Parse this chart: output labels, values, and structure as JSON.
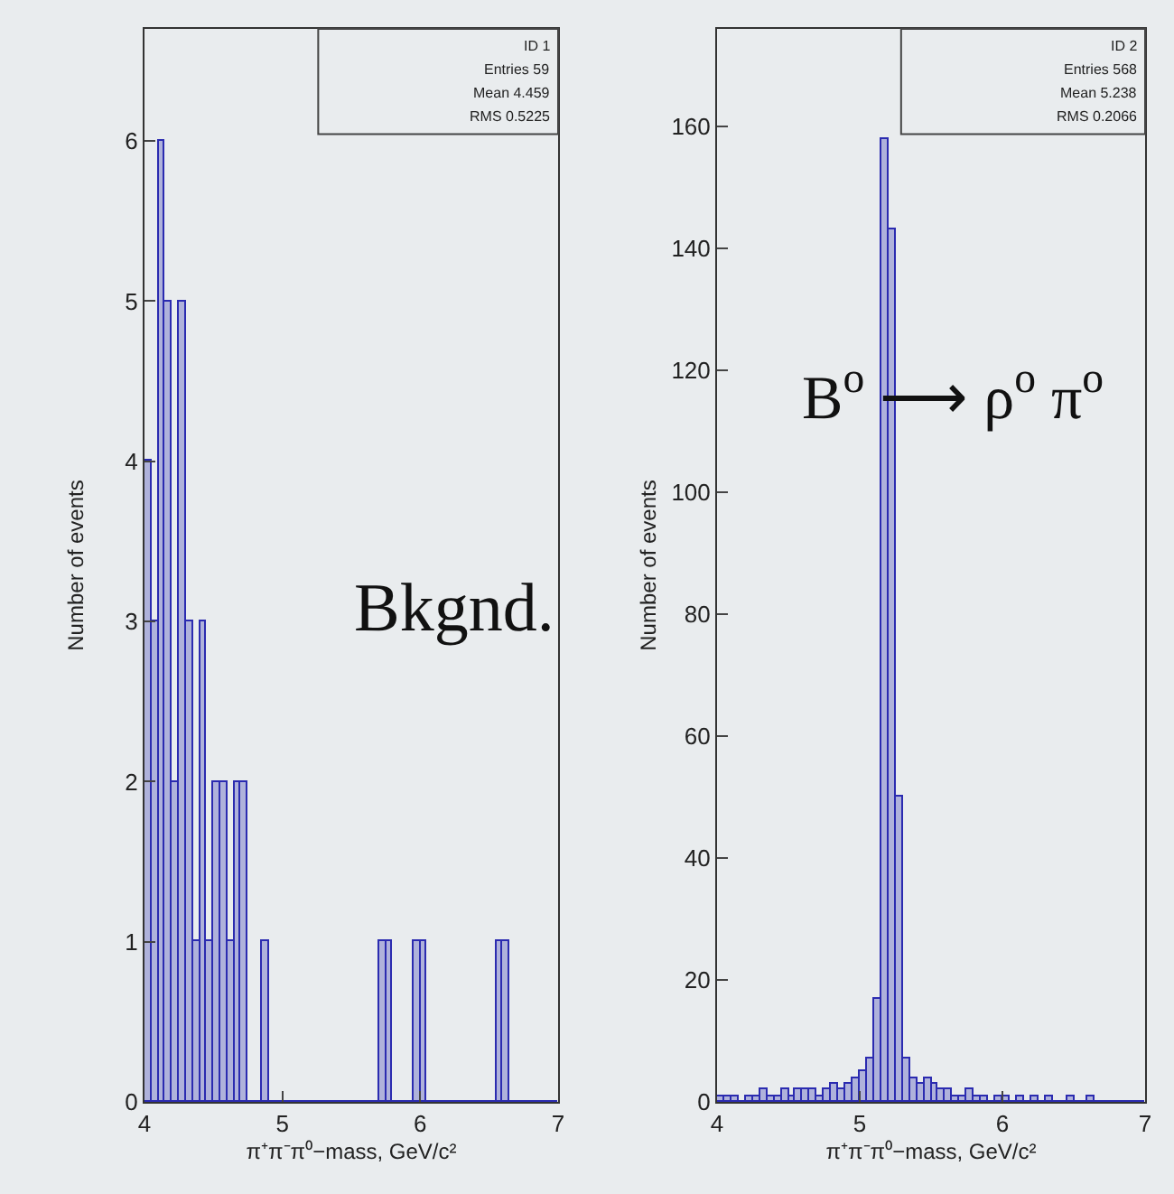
{
  "chart_data": [
    {
      "type": "histogram",
      "ylabel": "Number of events",
      "xlabel": "π⁺π⁻π⁰−mass, GeV/c²",
      "color": "#2b2bb0",
      "bins": [
        4.0,
        4.05,
        4.1,
        4.15,
        4.2,
        4.25,
        4.3,
        4.35,
        4.4,
        4.45,
        4.5,
        4.55,
        4.6,
        4.65,
        4.7,
        4.75,
        4.8,
        4.85,
        4.9,
        4.95,
        5.0,
        5.05,
        5.1,
        5.15,
        5.2,
        5.25,
        5.3,
        5.35,
        5.4,
        5.45,
        5.5,
        5.55,
        5.6,
        5.65,
        5.7,
        5.75,
        5.8,
        5.85,
        5.9,
        5.95,
        6.0,
        6.05,
        6.1,
        6.15,
        6.2,
        6.25,
        6.3,
        6.35,
        6.4,
        6.45,
        6.5,
        6.55,
        6.6,
        6.65,
        6.7,
        6.75,
        6.8,
        6.85,
        6.9,
        6.95,
        7.0
      ],
      "values": [
        4,
        3,
        6,
        5,
        2,
        5,
        3,
        1,
        3,
        1,
        2,
        2,
        1,
        2,
        2,
        0,
        0,
        1,
        0,
        0,
        0,
        0,
        0,
        0,
        0,
        0,
        0,
        0,
        0,
        0,
        0,
        0,
        0,
        0,
        1,
        1,
        0,
        0,
        0,
        1,
        1,
        0,
        0,
        0,
        0,
        0,
        0,
        0,
        0,
        0,
        0,
        1,
        1,
        0,
        0,
        0,
        0,
        0,
        0,
        0
      ],
      "xlim": [
        4,
        7
      ],
      "xticks": [
        4,
        5,
        6,
        7
      ],
      "ylim": [
        0,
        6.7
      ],
      "yticks": [
        0,
        1,
        2,
        3,
        4,
        5,
        6
      ],
      "grid": false,
      "legend": false,
      "annotations": [
        "ID 1",
        "Entries 59",
        "Mean 4.459",
        "RMS 0.5225",
        "Bkgnd."
      ]
    },
    {
      "type": "histogram",
      "ylabel": "Number of events",
      "xlabel": "π⁺π⁻π⁰−mass, GeV/c²",
      "color": "#2b2bb0",
      "bins": [
        4.0,
        4.05,
        4.1,
        4.15,
        4.2,
        4.25,
        4.3,
        4.35,
        4.4,
        4.45,
        4.5,
        4.55,
        4.6,
        4.65,
        4.7,
        4.75,
        4.8,
        4.85,
        4.9,
        4.95,
        5.0,
        5.05,
        5.1,
        5.15,
        5.2,
        5.25,
        5.3,
        5.35,
        5.4,
        5.45,
        5.5,
        5.55,
        5.6,
        5.65,
        5.7,
        5.75,
        5.8,
        5.85,
        5.9,
        5.95,
        6.0,
        6.05,
        6.1,
        6.15,
        6.2,
        6.25,
        6.3,
        6.35,
        6.4,
        6.45,
        6.5,
        6.55,
        6.6,
        6.65,
        6.7,
        6.75,
        6.8,
        6.85,
        6.9,
        6.95,
        7.0
      ],
      "values": [
        1,
        1,
        1,
        0,
        1,
        1,
        2,
        1,
        1,
        2,
        1,
        2,
        2,
        2,
        1,
        2,
        3,
        2,
        3,
        4,
        5,
        7,
        17,
        158,
        143,
        50,
        7,
        4,
        3,
        4,
        3,
        2,
        2,
        1,
        1,
        2,
        1,
        1,
        0,
        1,
        1,
        0,
        1,
        0,
        1,
        0,
        1,
        0,
        0,
        1,
        0,
        0,
        1,
        0,
        0,
        0,
        0,
        0,
        0,
        0
      ],
      "xlim": [
        4,
        7
      ],
      "xticks": [
        4,
        5,
        6,
        7
      ],
      "ylim": [
        0,
        176
      ],
      "yticks": [
        0,
        20,
        40,
        60,
        80,
        100,
        120,
        140,
        160
      ],
      "grid": false,
      "legend": false,
      "annotations": [
        "ID 2",
        "Entries 568",
        "Mean 5.238",
        "RMS 0.2066",
        "B$^{o}$ ⟶ ρ$^{o}$ π$^{o}$"
      ]
    }
  ]
}
